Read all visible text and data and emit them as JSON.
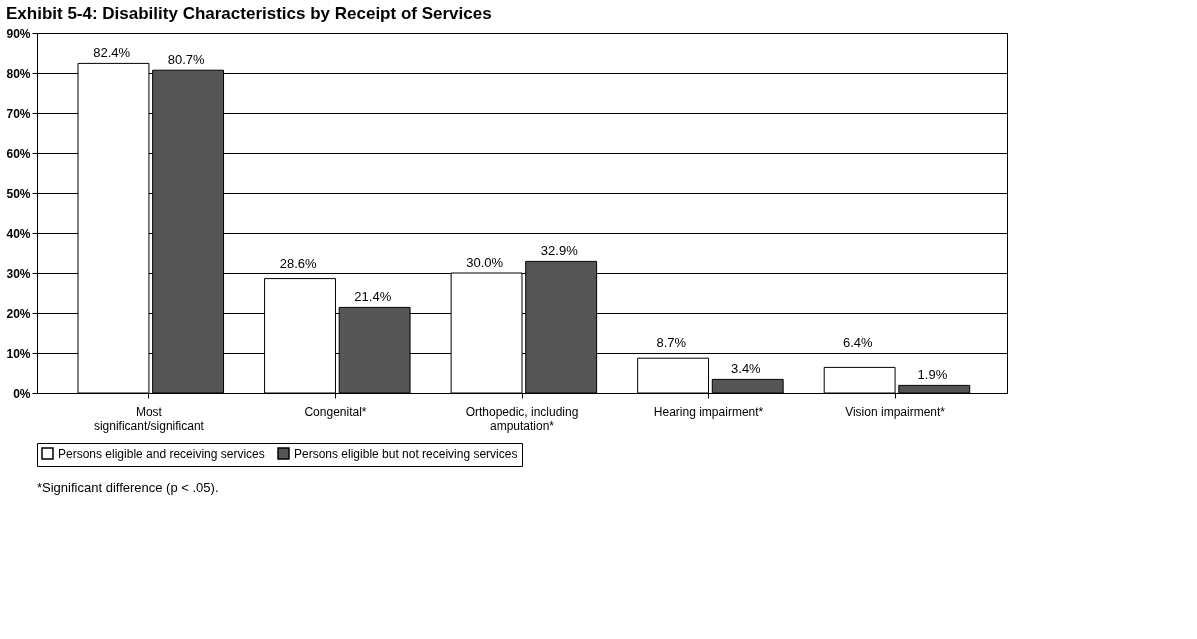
{
  "chart_data": {
    "type": "bar",
    "title": "Exhibit 5-4: Disability Characteristics by Receipt of Services",
    "categories": [
      "Most\nsignificant/significant",
      "Congenital*",
      "Orthopedic, including\namputation*",
      "Hearing impairment*",
      "Vision impairment*"
    ],
    "series": [
      {
        "name": "Persons eligible and receiving services",
        "color": "#ffffff",
        "values": [
          82.4,
          28.6,
          30.0,
          8.7,
          6.4
        ],
        "value_labels": [
          "82.4%",
          "28.6%",
          "30.0%",
          "8.7%",
          "6.4%"
        ]
      },
      {
        "name": "Persons eligible but not receiving services",
        "color": "#555555",
        "values": [
          80.7,
          21.4,
          32.9,
          3.4,
          1.9
        ],
        "value_labels": [
          "80.7%",
          "21.4%",
          "32.9%",
          "3.4%",
          "1.9%"
        ]
      }
    ],
    "ylim": [
      0,
      90
    ],
    "yticks": [
      {
        "value": 0,
        "label": "0%"
      },
      {
        "value": 10,
        "label": "10%"
      },
      {
        "value": 20,
        "label": "20%"
      },
      {
        "value": 30,
        "label": "30%"
      },
      {
        "value": 40,
        "label": "40%"
      },
      {
        "value": 50,
        "label": "50%"
      },
      {
        "value": 60,
        "label": "60%"
      },
      {
        "value": 70,
        "label": "70%"
      },
      {
        "value": 80,
        "label": "80%"
      },
      {
        "value": 90,
        "label": "90%"
      }
    ],
    "grid": "y",
    "legend": "bottom",
    "annotations": [
      "*Significant difference (p < .05)."
    ]
  }
}
